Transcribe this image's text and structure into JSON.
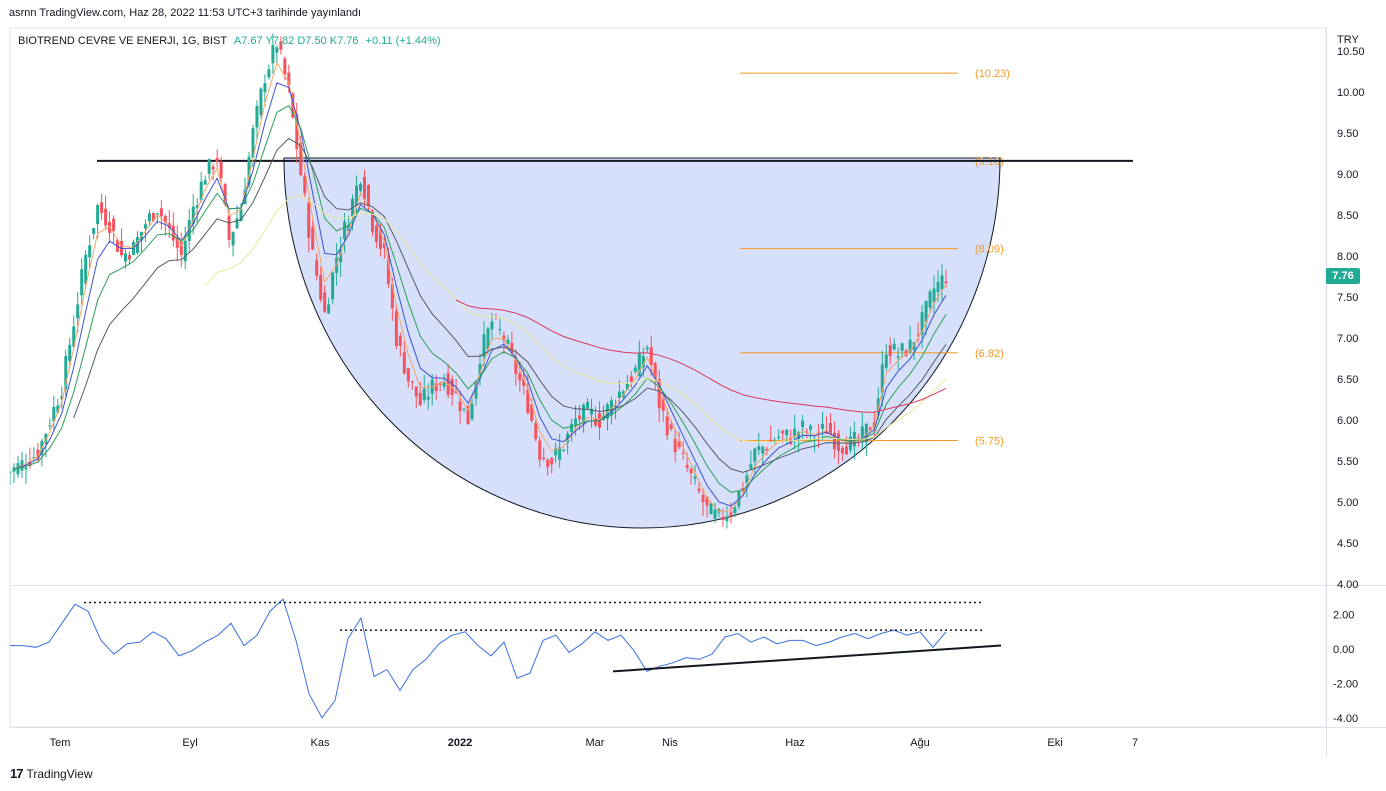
{
  "header": {
    "publish_text": "asrnn TradingView.com, Haz 28, 2022 11:53 UTC+3 tarihinde yayınlandı",
    "symbol_text": "BIOTREND CEVRE VE ENERJI, 1G, BIST",
    "ohlc_text": "A7.67 Y7.82 D7.50 K7.76",
    "change_text": "+0.11 (+1.44%)",
    "currency": "TRY"
  },
  "last_price_label": "7.76",
  "branding": {
    "logo_icon": "tradingview-logo-icon",
    "text": "TradingView"
  },
  "colors": {
    "up": "#22ab94",
    "down": "#f7525f",
    "cup_fill": "#d6e0fb",
    "fib": "#f59a23",
    "ema_fast": "#f7a56b",
    "ema_mid": "#3f51d6",
    "ema_green": "#2e9e5a",
    "ema_dark": "#555a66",
    "ema_yellow": "#e8e89a",
    "ema_red": "#d9375b",
    "osc": "#3a6fe0"
  },
  "chart_data": [
    {
      "type": "candlestick",
      "title": "",
      "xlabel": "",
      "ylabel": "",
      "ylim": [
        4.0,
        10.7
      ],
      "y_ticks": [
        "4.00",
        "4.50",
        "5.00",
        "5.50",
        "6.00",
        "6.50",
        "7.00",
        "7.50",
        "8.00",
        "8.50",
        "9.00",
        "9.50",
        "10.00",
        "10.50"
      ],
      "x_ticks": [
        {
          "label": "Tem",
          "t": 50
        },
        {
          "label": "Eyl",
          "t": 180
        },
        {
          "label": "Kas",
          "t": 310
        },
        {
          "label": "2022",
          "t": 450
        },
        {
          "label": "Mar",
          "t": 585
        },
        {
          "label": "Nis",
          "t": 660
        },
        {
          "label": "Haz",
          "t": 785
        },
        {
          "label": "Ağu",
          "t": 910
        },
        {
          "label": "Eki",
          "t": 1045
        },
        {
          "label": "7",
          "t": 1125
        }
      ],
      "fib_levels": [
        {
          "label": "(10.23)",
          "value": 10.23
        },
        {
          "label": "(9.16)",
          "value": 9.16
        },
        {
          "label": "(8.09)",
          "value": 8.09
        },
        {
          "label": "(6.82)",
          "value": 6.82
        },
        {
          "label": "(5.75)",
          "value": 5.75
        }
      ],
      "horizontal_line": 9.16,
      "close_series": [
        5.4,
        5.5,
        5.6,
        6.0,
        6.4,
        7.2,
        8.0,
        8.6,
        8.4,
        8.0,
        8.1,
        8.4,
        8.6,
        8.3,
        8.0,
        8.6,
        9.0,
        9.2,
        8.2,
        8.6,
        9.5,
        10.2,
        10.6,
        10.0,
        9.0,
        8.0,
        7.3,
        8.0,
        8.5,
        9.0,
        8.4,
        8.0,
        7.0,
        6.5,
        6.2,
        6.4,
        6.5,
        6.3,
        6.0,
        6.8,
        7.2,
        7.0,
        6.6,
        6.2,
        5.6,
        5.5,
        5.7,
        6.0,
        6.1,
        6.0,
        6.2,
        6.4,
        6.6,
        6.9,
        6.2,
        5.8,
        5.5,
        5.2,
        4.9,
        4.8,
        4.9,
        5.2,
        5.6,
        5.7,
        5.8,
        5.8,
        5.9,
        5.8,
        5.9,
        5.7,
        5.7,
        5.8,
        6.0,
        6.9,
        6.8,
        6.9,
        7.2,
        7.6,
        7.76
      ]
    },
    {
      "type": "line",
      "title": "",
      "ylim": [
        -4.6,
        3.2
      ],
      "y_ticks": [
        "-4.00",
        "-2.00",
        "0.00",
        "2.00"
      ],
      "series": [
        {
          "values": [
            0.2,
            0.2,
            0.1,
            0.4,
            1.5,
            2.6,
            2.2,
            0.5,
            -0.3,
            0.3,
            0.4,
            1.0,
            0.6,
            -0.4,
            -0.1,
            0.4,
            0.8,
            1.5,
            0.2,
            0.8,
            2.2,
            2.9,
            0.5,
            -2.6,
            -4.0,
            -3.0,
            0.6,
            1.8,
            -1.6,
            -1.2,
            -2.4,
            -1.2,
            -0.6,
            0.3,
            0.8,
            1.0,
            0.2,
            -0.4,
            0.4,
            -1.7,
            -1.4,
            0.5,
            0.8,
            -0.2,
            0.3,
            1.0,
            0.5,
            0.8,
            -0.1,
            -1.3,
            -1.0,
            -0.8,
            -0.5,
            -0.6,
            -0.3,
            0.7,
            0.9,
            0.4,
            0.7,
            0.3,
            0.5,
            0.5,
            0.2,
            0.4,
            0.7,
            0.9,
            0.6,
            0.9,
            1.1,
            0.8,
            1.0,
            0.1,
            1.0
          ]
        }
      ],
      "dotted_levels": [
        2.7,
        1.1
      ],
      "trend_line": {
        "from": [
          -1.3,
          0
        ],
        "to": [
          0.2,
          1
        ]
      }
    }
  ]
}
